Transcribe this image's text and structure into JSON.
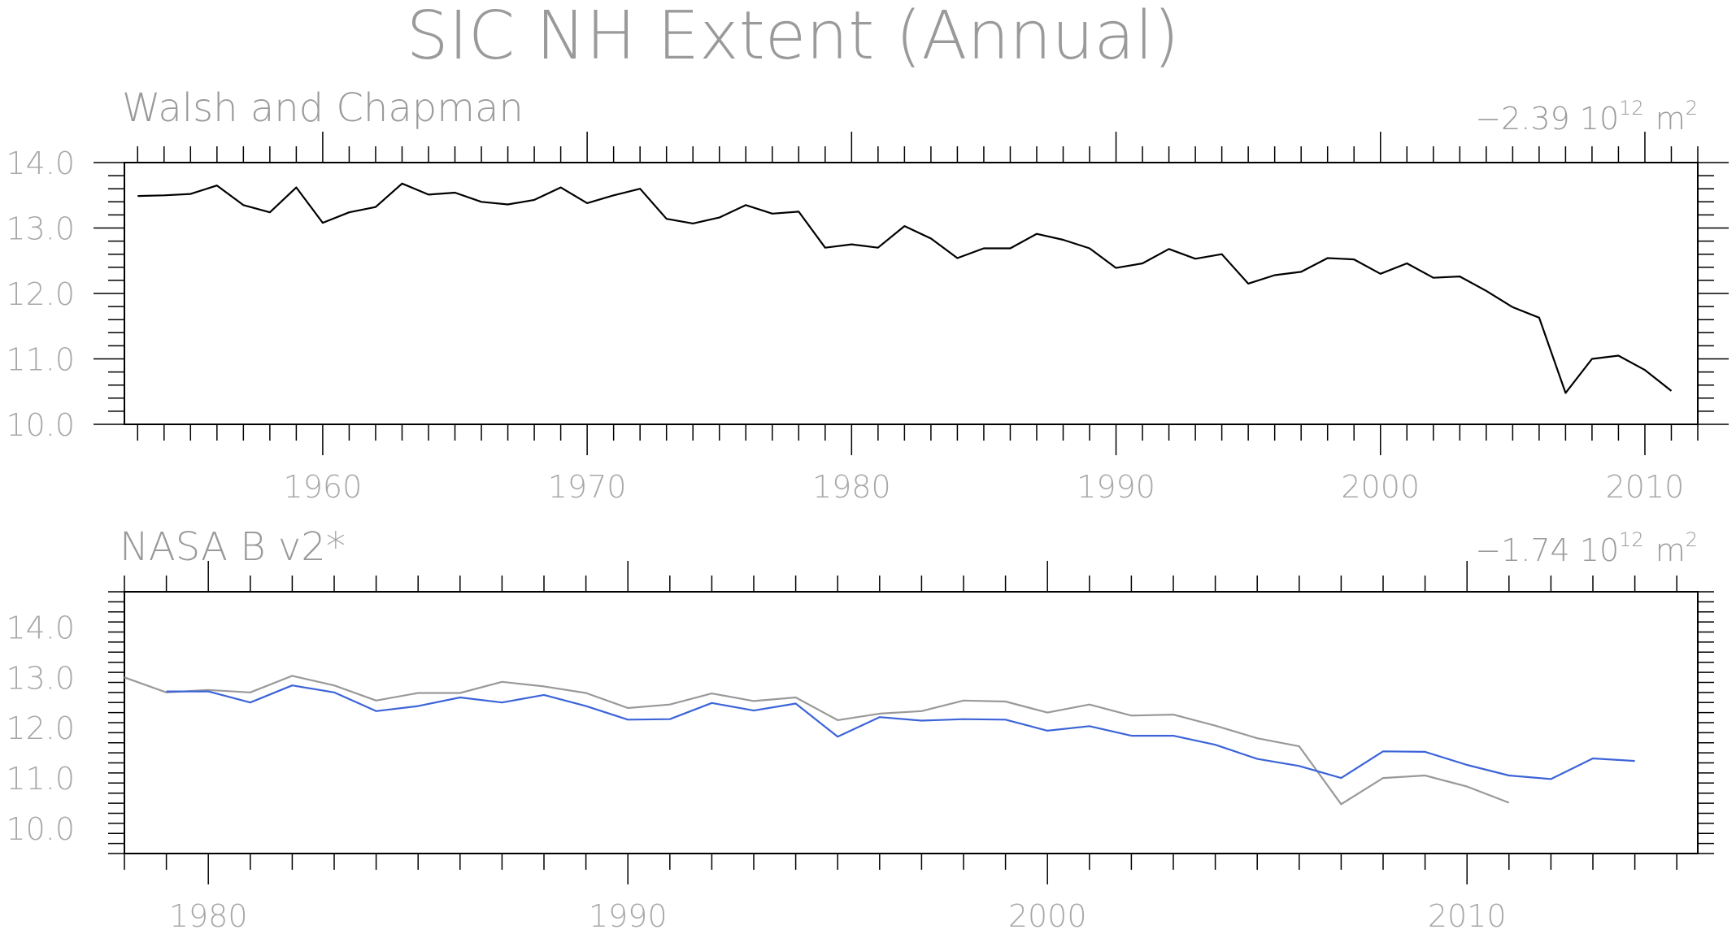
{
  "title": "SIC NH Extent (Annual)",
  "chart_data": [
    {
      "type": "line",
      "subtitle": "Walsh and Chapman",
      "trend": {
        "prefix": "−2.39 10",
        "exponent": "12",
        "unit": "m",
        "unit_exponent": "2"
      },
      "xlim": [
        1952.5,
        2012.0
      ],
      "ylim": [
        10.0,
        14.0
      ],
      "yticks": [
        10.0,
        11.0,
        12.0,
        13.0,
        14.0
      ],
      "ytick_labels": [
        "10.0",
        "11.0",
        "12.0",
        "13.0",
        "14.0"
      ],
      "xticks": [
        1960,
        1970,
        1980,
        1990,
        2000,
        2010
      ],
      "xtick_labels": [
        "1960",
        "1970",
        "1980",
        "1990",
        "2000",
        "2010"
      ],
      "series": [
        {
          "color": "#000000",
          "x": [
            1953,
            1954,
            1955,
            1956,
            1957,
            1958,
            1959,
            1960,
            1961,
            1962,
            1963,
            1964,
            1965,
            1966,
            1967,
            1968,
            1969,
            1970,
            1971,
            1972,
            1973,
            1974,
            1975,
            1976,
            1977,
            1978,
            1979,
            1980,
            1981,
            1982,
            1983,
            1984,
            1985,
            1986,
            1987,
            1988,
            1989,
            1990,
            1991,
            1992,
            1993,
            1994,
            1995,
            1996,
            1997,
            1998,
            1999,
            2000,
            2001,
            2002,
            2003,
            2004,
            2005,
            2006,
            2007,
            2008,
            2009,
            2010,
            2011
          ],
          "y": [
            13.49,
            13.5,
            13.52,
            13.65,
            13.35,
            13.24,
            13.62,
            13.08,
            13.24,
            13.32,
            13.68,
            13.51,
            13.54,
            13.4,
            13.36,
            13.43,
            13.62,
            13.38,
            13.5,
            13.6,
            13.14,
            13.07,
            13.16,
            13.35,
            13.22,
            13.25,
            12.7,
            12.75,
            12.7,
            13.03,
            12.84,
            12.54,
            12.69,
            12.69,
            12.91,
            12.82,
            12.69,
            12.39,
            12.46,
            12.68,
            12.53,
            12.6,
            12.15,
            12.28,
            12.33,
            12.54,
            12.52,
            12.3,
            12.46,
            12.24,
            12.26,
            12.04,
            11.79,
            11.63,
            10.48,
            11.0,
            11.05,
            10.83,
            10.51
          ]
        }
      ]
    },
    {
      "type": "line",
      "subtitle": "NASA B v2*",
      "trend": {
        "prefix": "−1.74 10",
        "exponent": "12",
        "unit": "m",
        "unit_exponent": "2"
      },
      "xlim": [
        1978.0,
        2015.5
      ],
      "ylim": [
        9.5,
        14.7
      ],
      "yticks": [
        10.0,
        11.0,
        12.0,
        13.0,
        14.0
      ],
      "ytick_labels": [
        "10.0",
        "11.0",
        "12.0",
        "13.0",
        "14.0"
      ],
      "xticks": [
        1980,
        1990,
        2000,
        2010
      ],
      "xtick_labels": [
        "1980",
        "1990",
        "2000",
        "2010"
      ],
      "series": [
        {
          "color": "#999999",
          "x": [
            1978,
            1979,
            1980,
            1981,
            1982,
            1983,
            1984,
            1985,
            1986,
            1987,
            1988,
            1989,
            1990,
            1991,
            1992,
            1993,
            1994,
            1995,
            1996,
            1997,
            1998,
            1999,
            2000,
            2001,
            2002,
            2003,
            2004,
            2005,
            2006,
            2007,
            2008,
            2009,
            2010,
            2011
          ],
          "y": [
            13.0,
            12.7,
            12.75,
            12.7,
            13.03,
            12.84,
            12.54,
            12.69,
            12.69,
            12.91,
            12.82,
            12.69,
            12.39,
            12.46,
            12.68,
            12.53,
            12.6,
            12.15,
            12.28,
            12.33,
            12.54,
            12.52,
            12.3,
            12.46,
            12.24,
            12.26,
            12.04,
            11.79,
            11.63,
            10.48,
            11.0,
            11.05,
            10.83,
            10.51
          ]
        },
        {
          "color": "#3c64d8",
          "x": [
            1979,
            1980,
            1981,
            1982,
            1983,
            1984,
            1985,
            1986,
            1987,
            1988,
            1989,
            1990,
            1991,
            1992,
            1993,
            1994,
            1995,
            1996,
            1997,
            1998,
            1999,
            2000,
            2001,
            2002,
            2003,
            2004,
            2005,
            2006,
            2007,
            2008,
            2009,
            2010,
            2011,
            2012,
            2013,
            2014
          ],
          "y": [
            12.72,
            12.72,
            12.5,
            12.84,
            12.7,
            12.33,
            12.43,
            12.6,
            12.5,
            12.65,
            12.43,
            12.16,
            12.17,
            12.49,
            12.34,
            12.48,
            11.82,
            12.21,
            12.14,
            12.17,
            12.16,
            11.94,
            12.03,
            11.84,
            11.84,
            11.66,
            11.38,
            11.24,
            11.0,
            11.53,
            11.52,
            11.26,
            11.05,
            10.98,
            11.39,
            11.34
          ]
        }
      ]
    }
  ]
}
